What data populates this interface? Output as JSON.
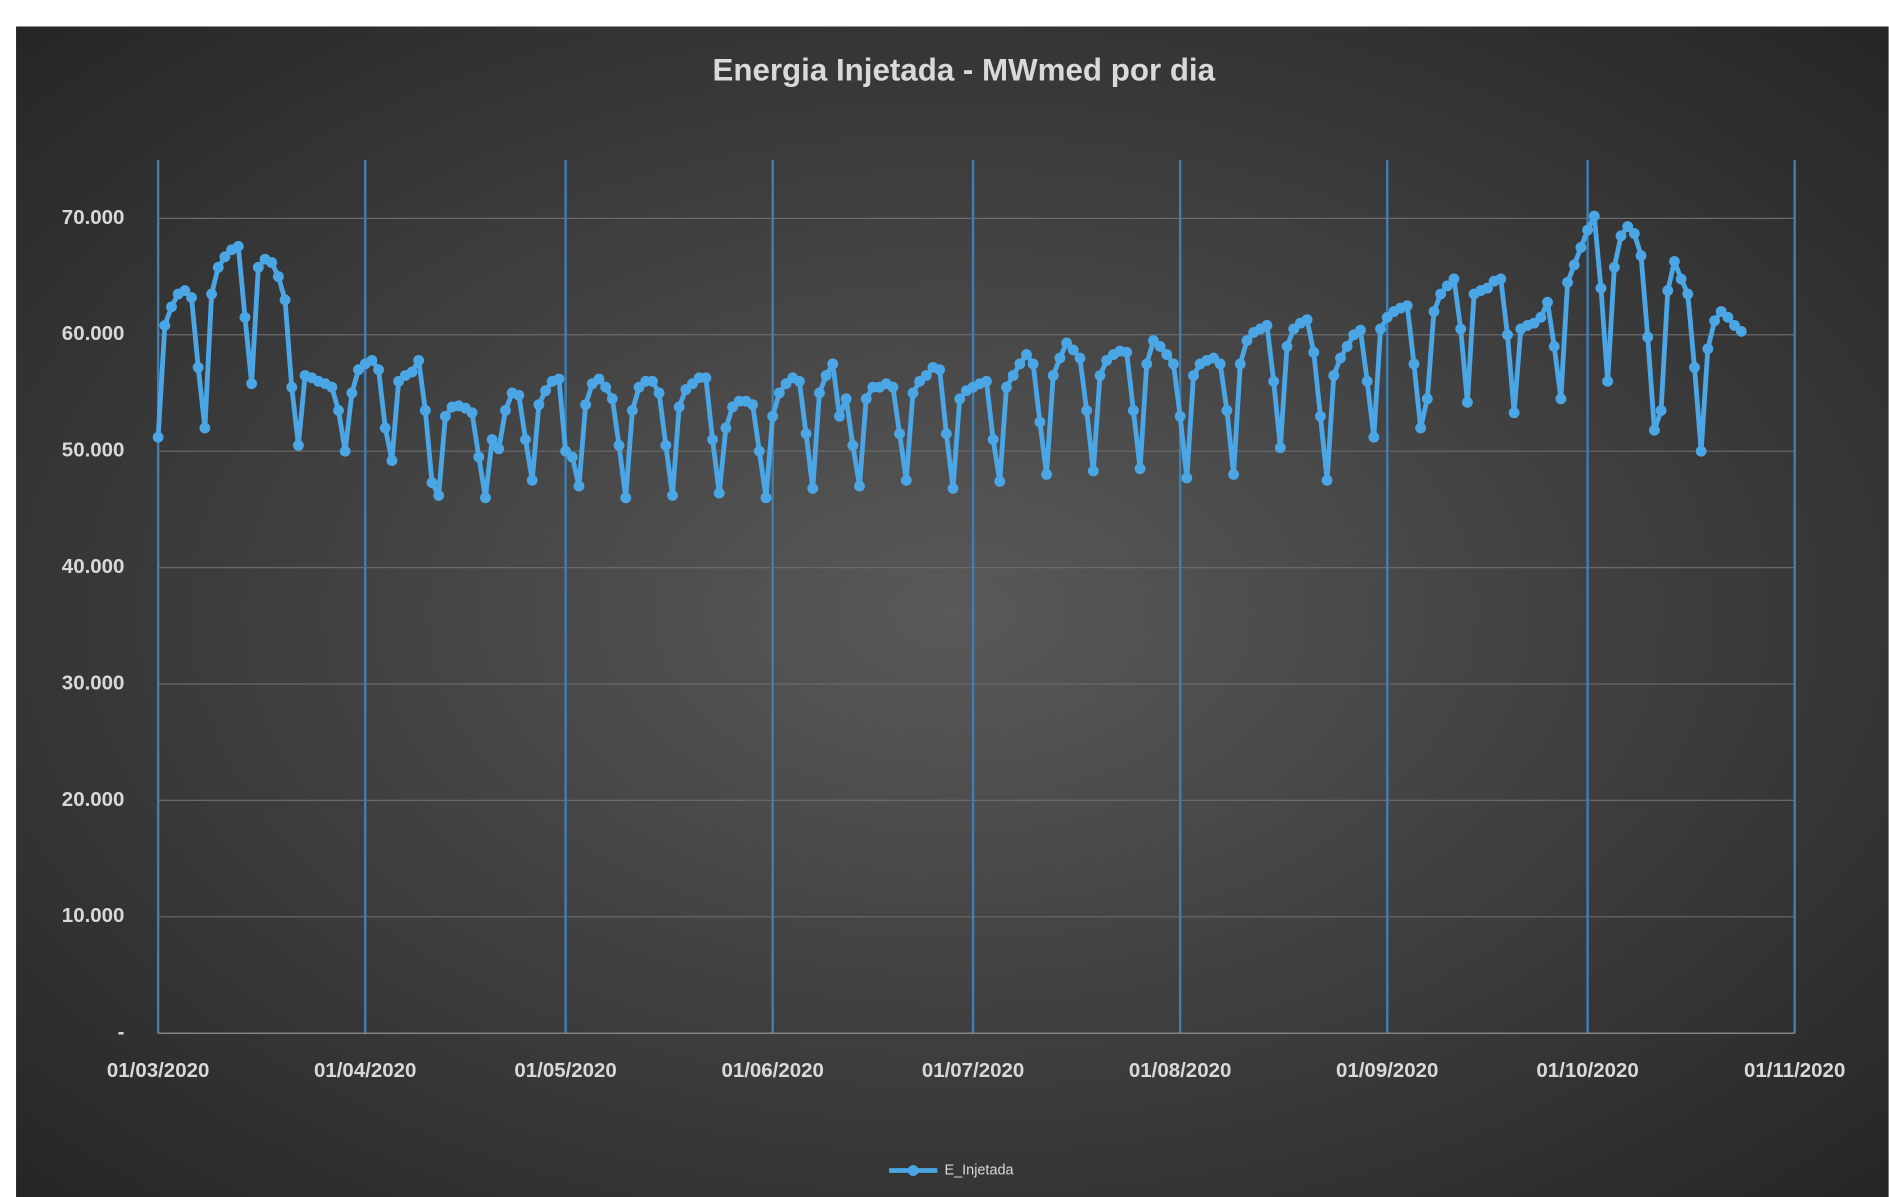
{
  "chart_data": {
    "type": "line",
    "title": "Energia Injetada - MWmed por dia",
    "x": [
      "01/03/2020",
      "02/03/2020",
      "03/03/2020",
      "04/03/2020",
      "05/03/2020",
      "06/03/2020",
      "07/03/2020",
      "08/03/2020",
      "09/03/2020",
      "10/03/2020",
      "11/03/2020",
      "12/03/2020",
      "13/03/2020",
      "14/03/2020",
      "15/03/2020",
      "16/03/2020",
      "17/03/2020",
      "18/03/2020",
      "19/03/2020",
      "20/03/2020",
      "21/03/2020",
      "22/03/2020",
      "23/03/2020",
      "24/03/2020",
      "25/03/2020",
      "26/03/2020",
      "27/03/2020",
      "28/03/2020",
      "29/03/2020",
      "30/03/2020",
      "31/03/2020",
      "01/04/2020",
      "02/04/2020",
      "03/04/2020",
      "04/04/2020",
      "05/04/2020",
      "06/04/2020",
      "07/04/2020",
      "08/04/2020",
      "09/04/2020",
      "10/04/2020",
      "11/04/2020",
      "12/04/2020",
      "13/04/2020",
      "14/04/2020",
      "15/04/2020",
      "16/04/2020",
      "17/04/2020",
      "18/04/2020",
      "19/04/2020",
      "20/04/2020",
      "21/04/2020",
      "22/04/2020",
      "23/04/2020",
      "24/04/2020",
      "25/04/2020",
      "26/04/2020",
      "27/04/2020",
      "28/04/2020",
      "29/04/2020",
      "30/04/2020",
      "01/05/2020",
      "02/05/2020",
      "03/05/2020",
      "04/05/2020",
      "05/05/2020",
      "06/05/2020",
      "07/05/2020",
      "08/05/2020",
      "09/05/2020",
      "10/05/2020",
      "11/05/2020",
      "12/05/2020",
      "13/05/2020",
      "14/05/2020",
      "15/05/2020",
      "16/05/2020",
      "17/05/2020",
      "18/05/2020",
      "19/05/2020",
      "20/05/2020",
      "21/05/2020",
      "22/05/2020",
      "23/05/2020",
      "24/05/2020",
      "25/05/2020",
      "26/05/2020",
      "27/05/2020",
      "28/05/2020",
      "29/05/2020",
      "30/05/2020",
      "31/05/2020",
      "01/06/2020",
      "02/06/2020",
      "03/06/2020",
      "04/06/2020",
      "05/06/2020",
      "06/06/2020",
      "07/06/2020",
      "08/06/2020",
      "09/06/2020",
      "10/06/2020",
      "11/06/2020",
      "12/06/2020",
      "13/06/2020",
      "14/06/2020",
      "15/06/2020",
      "16/06/2020",
      "17/06/2020",
      "18/06/2020",
      "19/06/2020",
      "20/06/2020",
      "21/06/2020",
      "22/06/2020",
      "23/06/2020",
      "24/06/2020",
      "25/06/2020",
      "26/06/2020",
      "27/06/2020",
      "28/06/2020",
      "29/06/2020",
      "30/06/2020",
      "01/07/2020",
      "02/07/2020",
      "03/07/2020",
      "04/07/2020",
      "05/07/2020",
      "06/07/2020",
      "07/07/2020",
      "08/07/2020",
      "09/07/2020",
      "10/07/2020",
      "11/07/2020",
      "12/07/2020",
      "13/07/2020",
      "14/07/2020",
      "15/07/2020",
      "16/07/2020",
      "17/07/2020",
      "18/07/2020",
      "19/07/2020",
      "20/07/2020",
      "21/07/2020",
      "22/07/2020",
      "23/07/2020",
      "24/07/2020",
      "25/07/2020",
      "26/07/2020",
      "27/07/2020",
      "28/07/2020",
      "29/07/2020",
      "30/07/2020",
      "31/07/2020",
      "01/08/2020",
      "02/08/2020",
      "03/08/2020",
      "04/08/2020",
      "05/08/2020",
      "06/08/2020",
      "07/08/2020",
      "08/08/2020",
      "09/08/2020",
      "10/08/2020",
      "11/08/2020",
      "12/08/2020",
      "13/08/2020",
      "14/08/2020",
      "15/08/2020",
      "16/08/2020",
      "17/08/2020",
      "18/08/2020",
      "19/08/2020",
      "20/08/2020",
      "21/08/2020",
      "22/08/2020",
      "23/08/2020",
      "24/08/2020",
      "25/08/2020",
      "26/08/2020",
      "27/08/2020",
      "28/08/2020",
      "29/08/2020",
      "30/08/2020",
      "31/08/2020",
      "01/09/2020",
      "02/09/2020",
      "03/09/2020",
      "04/09/2020",
      "05/09/2020",
      "06/09/2020",
      "07/09/2020",
      "08/09/2020",
      "09/09/2020",
      "10/09/2020",
      "11/09/2020",
      "12/09/2020",
      "13/09/2020",
      "14/09/2020",
      "15/09/2020",
      "16/09/2020",
      "17/09/2020",
      "18/09/2020",
      "19/09/2020",
      "20/09/2020",
      "21/09/2020",
      "22/09/2020",
      "23/09/2020",
      "24/09/2020",
      "25/09/2020",
      "26/09/2020",
      "27/09/2020",
      "28/09/2020",
      "29/09/2020",
      "30/09/2020",
      "01/10/2020",
      "02/10/2020",
      "03/10/2020",
      "04/10/2020",
      "05/10/2020",
      "06/10/2020",
      "07/10/2020",
      "08/10/2020",
      "09/10/2020",
      "10/10/2020",
      "11/10/2020",
      "12/10/2020",
      "13/10/2020",
      "14/10/2020",
      "15/10/2020",
      "16/10/2020",
      "17/10/2020",
      "18/10/2020",
      "19/10/2020",
      "20/10/2020",
      "21/10/2020",
      "22/10/2020",
      "23/10/2020",
      "24/10/2020"
    ],
    "series": [
      {
        "name": "E_Injetada",
        "color": "#4ba6e6",
        "values": [
          51200,
          60800,
          62400,
          63500,
          63800,
          63200,
          57200,
          52000,
          63500,
          65800,
          66700,
          67300,
          67600,
          61500,
          55800,
          65800,
          66500,
          66200,
          65000,
          63000,
          55500,
          50500,
          56500,
          56300,
          56000,
          55800,
          55500,
          53500,
          50000,
          55000,
          57000,
          57500,
          57800,
          57000,
          52000,
          49200,
          56000,
          56500,
          56800,
          57800,
          53500,
          47300,
          46200,
          53000,
          53800,
          53900,
          53700,
          53300,
          49500,
          46000,
          51000,
          50200,
          53500,
          55000,
          54800,
          51000,
          47500,
          54000,
          55200,
          56000,
          56200,
          50000,
          49500,
          47000,
          54000,
          55800,
          56200,
          55500,
          54500,
          50500,
          46000,
          53500,
          55500,
          56000,
          56000,
          55000,
          50500,
          46200,
          53800,
          55300,
          55800,
          56300,
          56300,
          51000,
          46400,
          52000,
          53800,
          54300,
          54300,
          54000,
          50000,
          46000,
          53000,
          55000,
          55800,
          56300,
          56000,
          51500,
          46800,
          55000,
          56500,
          57500,
          53000,
          54500,
          50500,
          47000,
          54500,
          55500,
          55500,
          55800,
          55500,
          51500,
          47500,
          55000,
          56000,
          56500,
          57200,
          57000,
          51500,
          46800,
          54500,
          55200,
          55500,
          55800,
          56000,
          51000,
          47400,
          55500,
          56500,
          57500,
          58300,
          57500,
          52500,
          48000,
          56500,
          58000,
          59300,
          58700,
          58000,
          53500,
          48300,
          56500,
          57800,
          58300,
          58600,
          58500,
          53500,
          48500,
          57500,
          59500,
          59000,
          58300,
          57500,
          53000,
          47700,
          56500,
          57500,
          57800,
          58000,
          57500,
          53500,
          48000,
          57500,
          59500,
          60200,
          60500,
          60800,
          56000,
          50300,
          59000,
          60500,
          61000,
          61300,
          58500,
          53000,
          47500,
          56500,
          58000,
          59000,
          60000,
          60400,
          56000,
          51200,
          60500,
          61500,
          62000,
          62300,
          62500,
          57500,
          52000,
          54500,
          62000,
          63500,
          64200,
          64800,
          60500,
          54200,
          63500,
          63800,
          64000,
          64600,
          64800,
          60000,
          53300,
          60500,
          60800,
          61000,
          61500,
          62800,
          59000,
          54500,
          64500,
          66000,
          67500,
          69000,
          70200,
          64000,
          56000,
          65800,
          68500,
          69300,
          68700,
          66800,
          59800,
          51800,
          53500,
          63800,
          66300,
          64800,
          63500,
          57200,
          50000,
          58800,
          61200,
          62000,
          61500,
          60800,
          60300
        ]
      }
    ],
    "xlim": [
      "01/03/2020",
      "01/11/2020"
    ],
    "xticks": [
      "01/03/2020",
      "01/04/2020",
      "01/05/2020",
      "01/06/2020",
      "01/07/2020",
      "01/08/2020",
      "01/09/2020",
      "01/10/2020",
      "01/11/2020"
    ],
    "ylim": [
      0,
      75000
    ],
    "yticks": [
      {
        "value": 0,
        "label": "-"
      },
      {
        "value": 10000,
        "label": "10.000"
      },
      {
        "value": 20000,
        "label": "20.000"
      },
      {
        "value": 30000,
        "label": "30.000"
      },
      {
        "value": 40000,
        "label": "40.000"
      },
      {
        "value": 50000,
        "label": "50.000"
      },
      {
        "value": 60000,
        "label": "60.000"
      },
      {
        "value": 70000,
        "label": "70.000"
      }
    ],
    "grid": true,
    "legend": "bottom"
  }
}
